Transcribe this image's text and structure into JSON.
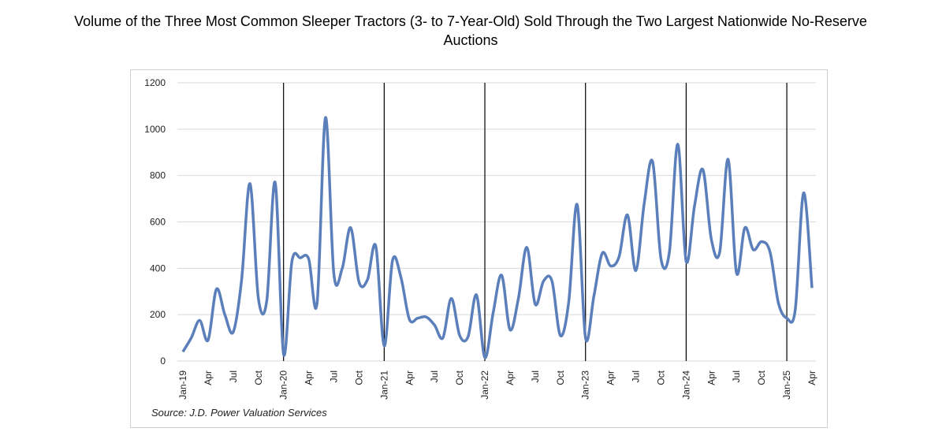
{
  "chart_data": {
    "type": "line",
    "title": "Volume of the Three Most Common Sleeper Tractors (3- to 7-Year-Old) Sold Through the Two Largest Nationwide No-Reserve",
    "subtitle": "Auctions",
    "source": "Source: J.D. Power Valuation Services",
    "categories": [
      "Jan-19",
      null,
      null,
      "Apr",
      null,
      null,
      "Jul",
      null,
      null,
      "Oct",
      null,
      null,
      "Jan-20",
      null,
      null,
      "Apr",
      null,
      null,
      "Jul",
      null,
      null,
      "Oct",
      null,
      null,
      "Jan-21",
      null,
      null,
      "Apr",
      null,
      null,
      "Jul",
      null,
      null,
      "Oct",
      null,
      null,
      "Jan-22",
      null,
      null,
      "Apr",
      null,
      null,
      "Jul",
      null,
      null,
      "Oct",
      null,
      null,
      "Jan-23",
      null,
      null,
      "Apr",
      null,
      null,
      "Jul",
      null,
      null,
      "Oct",
      null,
      null,
      "Jan-24",
      null,
      null,
      "Apr",
      null,
      null,
      "Jul",
      null,
      null,
      "Oct",
      null,
      null,
      "Jan-25",
      null,
      null,
      "Apr"
    ],
    "series": [
      {
        "name": "Volume",
        "color": "#5b7fba",
        "values": [
          40,
          100,
          175,
          90,
          310,
          200,
          125,
          350,
          765,
          270,
          260,
          770,
          30,
          430,
          445,
          440,
          250,
          1050,
          375,
          400,
          575,
          340,
          350,
          495,
          65,
          435,
          360,
          180,
          185,
          190,
          155,
          100,
          270,
          110,
          105,
          285,
          15,
          210,
          370,
          135,
          270,
          490,
          245,
          345,
          345,
          110,
          255,
          675,
          100,
          280,
          465,
          410,
          450,
          630,
          390,
          680,
          860,
          440,
          470,
          935,
          430,
          670,
          825,
          525,
          470,
          870,
          380,
          575,
          480,
          515,
          470,
          250,
          185,
          220,
          725,
          315
        ]
      }
    ],
    "ylim": [
      0,
      1200
    ],
    "yticks": [
      0,
      200,
      400,
      600,
      800,
      1000,
      1200
    ],
    "grid": true
  }
}
